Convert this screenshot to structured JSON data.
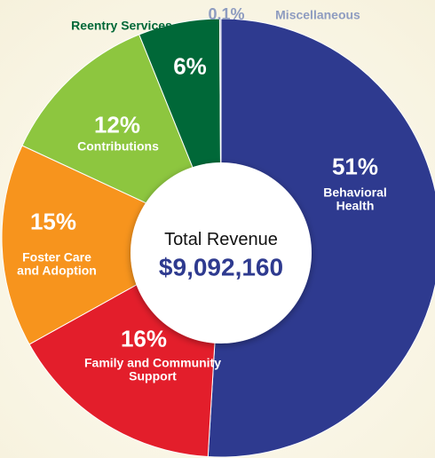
{
  "chart_data": {
    "type": "donut",
    "categories": [
      "Behavioral Health",
      "Family and Community Support",
      "Foster Care and Adoption",
      "Contributions",
      "Reentry Services",
      "Miscellaneous"
    ],
    "values": [
      51,
      16,
      15,
      12,
      6,
      0.1
    ],
    "value_labels": [
      "51%",
      "16%",
      "15%",
      "12%",
      "6%",
      "0.1%"
    ],
    "colors": [
      "#2e3a8f",
      "#e31e2b",
      "#f7941d",
      "#8dc63f",
      "#006838",
      "#8e9cc0"
    ],
    "center_title": "Total Revenue",
    "center_value": "$9,092,160"
  }
}
